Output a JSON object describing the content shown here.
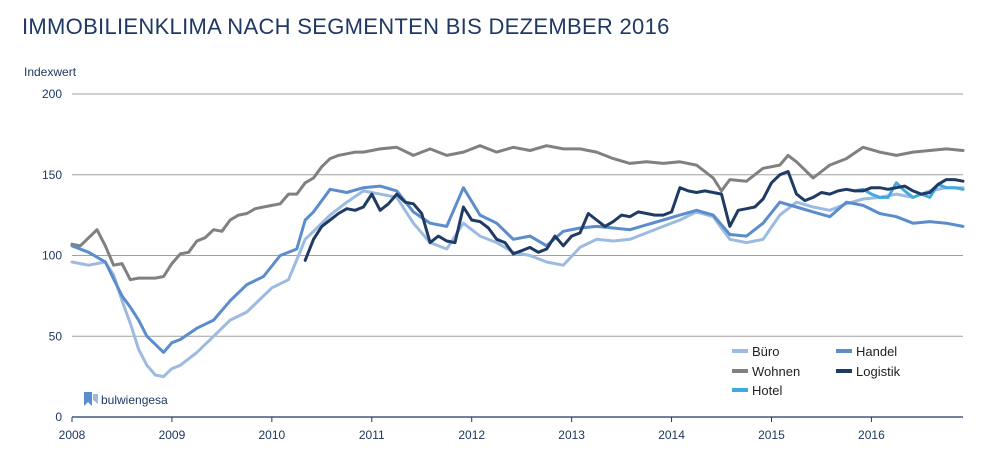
{
  "chart_data": {
    "type": "line",
    "title": "IMMOBILIENKLIMA NACH SEGMENTEN BIS DEZEMBER 2016",
    "ylabel": "Indexwert",
    "xlabel": "",
    "ylim": [
      0,
      200
    ],
    "yticks": [
      0,
      50,
      100,
      150,
      200
    ],
    "xlim": [
      "2008-01",
      "2016-12"
    ],
    "xticks": [
      "2008",
      "2009",
      "2010",
      "2011",
      "2012",
      "2013",
      "2014",
      "2015",
      "2016"
    ],
    "grid": "horizontal",
    "legend_placement": "bottom-right",
    "logo_text": "bulwiengesa",
    "series": [
      {
        "name": "Büro",
        "color": "#9dbbe0",
        "x": [
          "2008-01",
          "2008-03",
          "2008-05",
          "2008-06",
          "2008-07",
          "2008-08",
          "2008-09",
          "2008-10",
          "2008-11",
          "2008-12",
          "2009-01",
          "2009-02",
          "2009-04",
          "2009-06",
          "2009-08",
          "2009-10",
          "2009-12",
          "2010-01",
          "2010-03",
          "2010-05",
          "2010-06",
          "2010-08",
          "2010-10",
          "2010-12",
          "2011-02",
          "2011-04",
          "2011-06",
          "2011-08",
          "2011-10",
          "2011-12",
          "2012-02",
          "2012-04",
          "2012-06",
          "2012-08",
          "2012-10",
          "2012-12",
          "2013-02",
          "2013-04",
          "2013-06",
          "2013-08",
          "2013-10",
          "2013-12",
          "2014-02",
          "2014-04",
          "2014-06",
          "2014-08",
          "2014-10",
          "2014-12",
          "2015-02",
          "2015-04",
          "2015-06",
          "2015-08",
          "2015-10",
          "2015-12",
          "2016-02",
          "2016-04",
          "2016-06",
          "2016-08",
          "2016-10",
          "2016-12"
        ],
        "y": [
          96,
          94,
          96,
          88,
          72,
          58,
          42,
          32,
          26,
          25,
          30,
          32,
          40,
          50,
          60,
          65,
          75,
          80,
          85,
          110,
          115,
          125,
          133,
          140,
          138,
          136,
          120,
          108,
          104,
          120,
          112,
          108,
          102,
          100,
          96,
          94,
          105,
          110,
          109,
          110,
          114,
          118,
          122,
          127,
          124,
          110,
          108,
          110,
          125,
          133,
          130,
          128,
          132,
          135,
          136,
          138,
          136,
          140,
          142,
          142
        ]
      },
      {
        "name": "Wohnen",
        "color": "#808080",
        "x": [
          "2008-01",
          "2008-02",
          "2008-03",
          "2008-04",
          "2008-05",
          "2008-06",
          "2008-07",
          "2008-08",
          "2008-09",
          "2008-10",
          "2008-11",
          "2008-12",
          "2009-01",
          "2009-02",
          "2009-03",
          "2009-04",
          "2009-05",
          "2009-06",
          "2009-07",
          "2009-08",
          "2009-09",
          "2009-10",
          "2009-11",
          "2009-12",
          "2010-01",
          "2010-02",
          "2010-03",
          "2010-04",
          "2010-05",
          "2010-06",
          "2010-07",
          "2010-08",
          "2010-09",
          "2010-10",
          "2010-11",
          "2010-12",
          "2011-02",
          "2011-04",
          "2011-06",
          "2011-08",
          "2011-10",
          "2011-12",
          "2012-02",
          "2012-04",
          "2012-06",
          "2012-08",
          "2012-10",
          "2012-12",
          "2013-02",
          "2013-04",
          "2013-06",
          "2013-08",
          "2013-10",
          "2013-12",
          "2014-02",
          "2014-04",
          "2014-06",
          "2014-07",
          "2014-08",
          "2014-10",
          "2014-12",
          "2015-02",
          "2015-03",
          "2015-04",
          "2015-06",
          "2015-08",
          "2015-10",
          "2015-12",
          "2016-02",
          "2016-04",
          "2016-06",
          "2016-08",
          "2016-10",
          "2016-12"
        ],
        "y": [
          107,
          106,
          111,
          116,
          106,
          94,
          95,
          85,
          86,
          86,
          86,
          87,
          95,
          101,
          102,
          109,
          111,
          116,
          115,
          122,
          125,
          126,
          129,
          130,
          131,
          132,
          138,
          138,
          145,
          148,
          155,
          160,
          162,
          163,
          164,
          164,
          166,
          167,
          162,
          166,
          162,
          164,
          168,
          164,
          167,
          165,
          168,
          166,
          166,
          164,
          160,
          157,
          158,
          157,
          158,
          156,
          148,
          140,
          147,
          146,
          154,
          156,
          162,
          158,
          148,
          156,
          160,
          167,
          164,
          162,
          164,
          165,
          166,
          165
        ]
      },
      {
        "name": "Hotel",
        "color": "#3fa9e0",
        "x": [
          "2015-11",
          "2015-12",
          "2016-01",
          "2016-02",
          "2016-03",
          "2016-04",
          "2016-05",
          "2016-06",
          "2016-07",
          "2016-08",
          "2016-09",
          "2016-10",
          "2016-11",
          "2016-12"
        ],
        "y": [
          140,
          141,
          138,
          136,
          136,
          145,
          140,
          136,
          138,
          136,
          144,
          142,
          142,
          141
        ]
      },
      {
        "name": "Handel",
        "color": "#5b8ccc",
        "x": [
          "2008-01",
          "2008-03",
          "2008-05",
          "2008-07",
          "2008-08",
          "2008-09",
          "2008-10",
          "2008-11",
          "2008-12",
          "2009-01",
          "2009-02",
          "2009-04",
          "2009-06",
          "2009-08",
          "2009-10",
          "2009-12",
          "2010-02",
          "2010-04",
          "2010-05",
          "2010-06",
          "2010-08",
          "2010-10",
          "2010-12",
          "2011-02",
          "2011-04",
          "2011-06",
          "2011-08",
          "2011-10",
          "2011-12",
          "2012-02",
          "2012-04",
          "2012-06",
          "2012-08",
          "2012-10",
          "2012-12",
          "2013-02",
          "2013-04",
          "2013-06",
          "2013-08",
          "2013-10",
          "2013-12",
          "2014-02",
          "2014-04",
          "2014-06",
          "2014-08",
          "2014-10",
          "2014-12",
          "2015-02",
          "2015-04",
          "2015-06",
          "2015-08",
          "2015-10",
          "2015-12",
          "2016-02",
          "2016-04",
          "2016-06",
          "2016-08",
          "2016-10",
          "2016-12"
        ],
        "y": [
          106,
          102,
          96,
          75,
          68,
          60,
          50,
          45,
          40,
          46,
          48,
          55,
          60,
          72,
          82,
          87,
          100,
          104,
          122,
          127,
          141,
          139,
          142,
          143,
          140,
          127,
          120,
          118,
          142,
          125,
          120,
          110,
          112,
          106,
          115,
          117,
          118,
          117,
          116,
          119,
          122,
          125,
          128,
          125,
          113,
          112,
          120,
          133,
          130,
          127,
          124,
          133,
          131,
          126,
          124,
          120,
          121,
          120,
          118
        ]
      },
      {
        "name": "Logistik",
        "color": "#1f3b63",
        "x": [
          "2010-05",
          "2010-06",
          "2010-07",
          "2010-08",
          "2010-09",
          "2010-10",
          "2010-11",
          "2010-12",
          "2011-01",
          "2011-02",
          "2011-03",
          "2011-04",
          "2011-05",
          "2011-06",
          "2011-07",
          "2011-08",
          "2011-09",
          "2011-10",
          "2011-11",
          "2011-12",
          "2012-01",
          "2012-02",
          "2012-03",
          "2012-04",
          "2012-05",
          "2012-06",
          "2012-07",
          "2012-08",
          "2012-09",
          "2012-10",
          "2012-11",
          "2012-12",
          "2013-01",
          "2013-02",
          "2013-03",
          "2013-04",
          "2013-05",
          "2013-06",
          "2013-07",
          "2013-08",
          "2013-09",
          "2013-10",
          "2013-11",
          "2013-12",
          "2014-01",
          "2014-02",
          "2014-03",
          "2014-04",
          "2014-05",
          "2014-06",
          "2014-07",
          "2014-08",
          "2014-09",
          "2014-10",
          "2014-11",
          "2014-12",
          "2015-01",
          "2015-02",
          "2015-03",
          "2015-04",
          "2015-05",
          "2015-06",
          "2015-07",
          "2015-08",
          "2015-09",
          "2015-10",
          "2015-11",
          "2015-12",
          "2016-01",
          "2016-02",
          "2016-03",
          "2016-04",
          "2016-05",
          "2016-06",
          "2016-07",
          "2016-08",
          "2016-09",
          "2016-10",
          "2016-11",
          "2016-12"
        ],
        "y": [
          97,
          110,
          118,
          122,
          126,
          129,
          128,
          130,
          138,
          128,
          132,
          138,
          133,
          132,
          126,
          108,
          112,
          109,
          108,
          130,
          122,
          121,
          117,
          110,
          108,
          101,
          103,
          105,
          102,
          104,
          112,
          106,
          112,
          114,
          126,
          122,
          118,
          121,
          125,
          124,
          127,
          126,
          125,
          125,
          127,
          142,
          140,
          139,
          140,
          139,
          138,
          118,
          128,
          129,
          130,
          135,
          145,
          150,
          152,
          138,
          134,
          136,
          139,
          138,
          140,
          141,
          140,
          140,
          142,
          142,
          141,
          142,
          143,
          140,
          138,
          139,
          144,
          147,
          147,
          146
        ]
      }
    ]
  }
}
